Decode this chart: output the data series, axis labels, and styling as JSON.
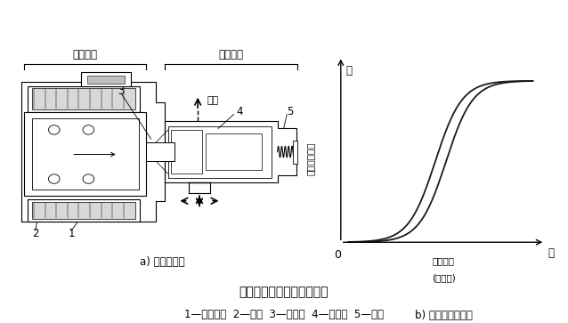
{
  "title": "占空比式电磁阀结构与原理",
  "subtitle": "1—电磁线圈  2—滑阀  3—滑阀轴  4—控制阀  5—弹簧",
  "label_a": "a) 结构示意图",
  "label_b": "b) 空占比调节曲线",
  "section_left": "电磁部分",
  "section_right": "调压部分",
  "ylabel": "线性电磁压力",
  "ylabel_arrow": "恒",
  "xlabel": "通电电流",
  "xlabel_sub": "(空占比)",
  "xlabel_arrow": "大",
  "origin_label": "0",
  "exhaust_label": "排出",
  "label_1": "1",
  "label_2": "2",
  "label_3": "3",
  "label_4": "4",
  "label_5": "5",
  "bg_color": "#ffffff",
  "line_color": "#000000",
  "curve_color": "#1a1a1a"
}
